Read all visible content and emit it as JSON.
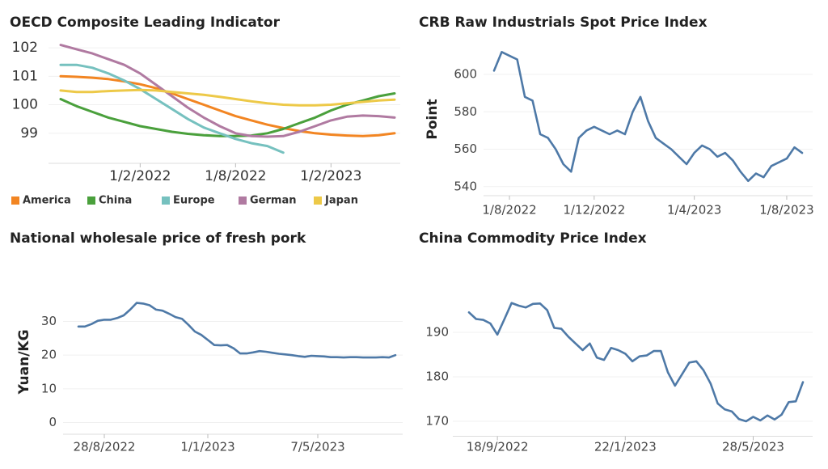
{
  "chart_data": [
    {
      "type": "line",
      "title": "OECD Composite Leading Indicator",
      "categories": [
        null,
        null,
        null,
        null,
        null,
        "1/2/2022",
        null,
        null,
        null,
        null,
        null,
        "1/8/2022",
        null,
        null,
        null,
        null,
        null,
        "1/2/2023",
        null,
        null,
        null,
        null
      ],
      "ylim": [
        98,
        102.4
      ],
      "yticks": [
        99,
        100,
        101,
        102
      ],
      "series": [
        {
          "name": "America",
          "color": "#f28522",
          "values": [
            101.0,
            100.98,
            100.95,
            100.9,
            100.82,
            100.72,
            100.58,
            100.4,
            100.2,
            100.0,
            99.8,
            99.6,
            99.45,
            99.3,
            99.18,
            99.08,
            99.0,
            98.95,
            98.92,
            98.9,
            98.93,
            99.0
          ]
        },
        {
          "name": "China",
          "color": "#4aa03c",
          "values": [
            100.2,
            99.95,
            99.75,
            99.55,
            99.4,
            99.25,
            99.15,
            99.05,
            98.98,
            98.93,
            98.9,
            98.9,
            98.92,
            99.0,
            99.15,
            99.35,
            99.55,
            99.8,
            100.0,
            100.15,
            100.3,
            100.4
          ]
        },
        {
          "name": "Europe",
          "color": "#76c1bf",
          "values": [
            101.4,
            101.4,
            101.3,
            101.1,
            100.85,
            100.55,
            100.2,
            99.85,
            99.5,
            99.2,
            99.0,
            98.8,
            98.65,
            98.55,
            98.32,
            null,
            null,
            null,
            null,
            null,
            null,
            null
          ]
        },
        {
          "name": "German",
          "color": "#b07aa1",
          "values": [
            102.1,
            101.95,
            101.8,
            101.6,
            101.4,
            101.1,
            100.7,
            100.3,
            99.9,
            99.55,
            99.25,
            99.0,
            98.9,
            98.88,
            98.9,
            99.05,
            99.25,
            99.45,
            99.58,
            99.62,
            99.6,
            99.55
          ]
        },
        {
          "name": "Japan",
          "color": "#edc948",
          "values": [
            100.5,
            100.45,
            100.45,
            100.48,
            100.5,
            100.52,
            100.5,
            100.45,
            100.4,
            100.35,
            100.28,
            100.2,
            100.12,
            100.05,
            100.0,
            99.98,
            99.98,
            100.0,
            100.05,
            100.1,
            100.15,
            100.18
          ]
        }
      ]
    },
    {
      "type": "line",
      "title": "CRB Raw Industrials Spot Price Index",
      "y_label": "Point",
      "color": "#4e79a7",
      "categories": [
        null,
        null,
        "1/8/2022",
        null,
        null,
        null,
        null,
        null,
        null,
        null,
        null,
        null,
        null,
        "1/12/2022",
        null,
        null,
        null,
        null,
        null,
        null,
        null,
        null,
        null,
        null,
        null,
        null,
        "1/4/2023",
        null,
        null,
        null,
        null,
        null,
        null,
        null,
        null,
        null,
        null,
        null,
        "1/8/2023",
        null,
        null
      ],
      "values": [
        602,
        612,
        610,
        608,
        588,
        586,
        568,
        566,
        560,
        552,
        548,
        566,
        570,
        572,
        570,
        568,
        570,
        568,
        580,
        588,
        575,
        566,
        563,
        560,
        556,
        552,
        558,
        562,
        560,
        556,
        558,
        554,
        548,
        543,
        547,
        545,
        551,
        553,
        555,
        561,
        558
      ],
      "ylim": [
        536,
        616
      ],
      "yticks": [
        540,
        560,
        580,
        600
      ]
    },
    {
      "type": "line",
      "title": "National wholesale price of fresh pork",
      "y_label": "Yuan/KG",
      "color": "#4e79a7",
      "categories": [
        null,
        null,
        null,
        null,
        "28/8/2022",
        null,
        null,
        null,
        null,
        null,
        null,
        null,
        null,
        null,
        null,
        null,
        null,
        null,
        null,
        null,
        "1/1/2023",
        null,
        null,
        null,
        null,
        null,
        null,
        null,
        null,
        null,
        null,
        null,
        null,
        null,
        null,
        null,
        null,
        "7/5/2023",
        null,
        null,
        null,
        null,
        null,
        null,
        null,
        null,
        null,
        null,
        null,
        null
      ],
      "values": [
        28.5,
        28.5,
        29.2,
        30.2,
        30.5,
        30.5,
        31,
        31.8,
        33.5,
        35.5,
        35.3,
        34.8,
        33.5,
        33.2,
        32.3,
        31.3,
        30.8,
        29,
        27,
        26,
        24.5,
        23,
        22.9,
        23,
        22,
        20.5,
        20.5,
        20.8,
        21.2,
        21,
        20.7,
        20.4,
        20.2,
        20,
        19.7,
        19.5,
        19.8,
        19.7,
        19.6,
        19.4,
        19.4,
        19.3,
        19.4,
        19.4,
        19.3,
        19.3,
        19.3,
        19.4,
        19.3,
        20.0
      ],
      "ylim": [
        -3,
        39
      ],
      "yticks": [
        0,
        10,
        20,
        30
      ]
    },
    {
      "type": "line",
      "title": "China Commodity Price Index",
      "color": "#4e79a7",
      "categories": [
        null,
        null,
        null,
        null,
        "18/9/2022",
        null,
        null,
        null,
        null,
        null,
        null,
        null,
        null,
        null,
        null,
        null,
        null,
        null,
        null,
        null,
        null,
        null,
        "22/1/2023",
        null,
        null,
        null,
        null,
        null,
        null,
        null,
        null,
        null,
        null,
        null,
        null,
        null,
        null,
        null,
        null,
        null,
        "28/5/2023",
        null,
        null,
        null,
        null,
        null,
        null,
        null
      ],
      "values": [
        194.5,
        193,
        192.8,
        192,
        189.5,
        193,
        196.6,
        196,
        195.6,
        196.4,
        196.5,
        195,
        191,
        190.8,
        189,
        187.5,
        186,
        187.5,
        184.3,
        183.8,
        186.5,
        186,
        185.2,
        183.5,
        184.6,
        184.8,
        185.8,
        185.8,
        181,
        178,
        180.6,
        183.2,
        183.5,
        181.5,
        178.5,
        174,
        172.7,
        172.2,
        170.5,
        170,
        171,
        170.2,
        171.3,
        170.4,
        171.5,
        174.3,
        174.5,
        178.8
      ],
      "ylim": [
        167,
        200
      ],
      "yticks": [
        170,
        180,
        190
      ]
    }
  ]
}
